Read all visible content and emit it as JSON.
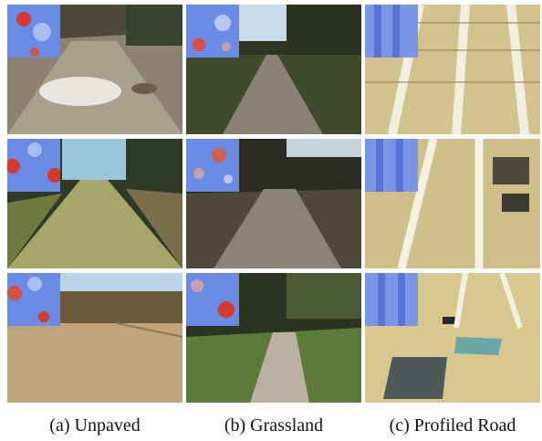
{
  "figure": {
    "columns": [
      {
        "caption": "(a) Unpaved",
        "terrain": "unpaved"
      },
      {
        "caption": "(b) Grassland",
        "terrain": "grassland"
      },
      {
        "caption": "(c) Profiled Road",
        "terrain": "profiled-road"
      }
    ],
    "rows": 3,
    "heatmap_inset": "top-left",
    "colors": {
      "heatmap_low": "#5b7de0",
      "heatmap_mid": "#9fb2f0",
      "heatmap_high": "#d63a2a",
      "unpaved_ground": "#a89070",
      "grass": "#5c7a3a",
      "profiled_surface": "#d8c890",
      "sky": "#bcd4ea"
    }
  }
}
